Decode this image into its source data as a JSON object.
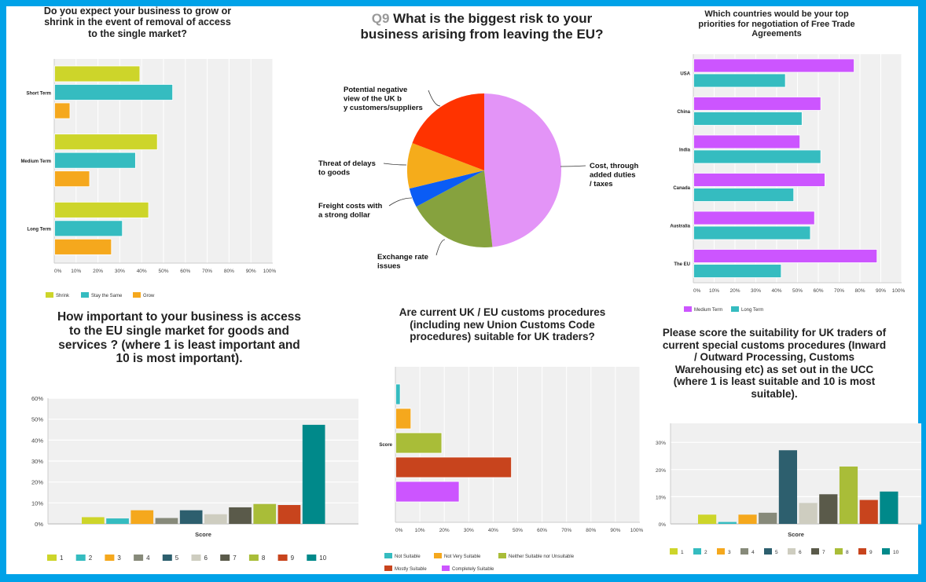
{
  "frame_color": "#00a2e8",
  "chart_data": [
    {
      "id": "growth",
      "type": "bar",
      "orientation": "horizontal",
      "title": "Do you expect your business to grow or shrink in the event of removal of access to the single market?",
      "categories": [
        "Short Term",
        "Medium Term",
        "Long Term"
      ],
      "series": [
        {
          "name": "Shrink",
          "color": "#cdd52a",
          "values": [
            39,
            47,
            43
          ]
        },
        {
          "name": "Stay the Same",
          "color": "#35bcc0",
          "values": [
            54,
            37,
            31
          ]
        },
        {
          "name": "Grow",
          "color": "#f5a81d",
          "values": [
            7,
            16,
            26
          ]
        }
      ],
      "xlim": [
        0,
        100
      ],
      "ticks": [
        "0%",
        "10%",
        "20%",
        "30%",
        "40%",
        "50%",
        "60%",
        "70%",
        "80%",
        "90%",
        "100%"
      ],
      "grid": true,
      "legend": "bottom"
    },
    {
      "id": "risk",
      "type": "pie",
      "title_prefix": "Q9",
      "title": "What is the biggest risk to your business arising from leaving the EU?",
      "slices": [
        {
          "label": "Cost, through added duties / taxes",
          "value": 48.3,
          "color": "#e394f7"
        },
        {
          "label": "Exchange rate issues",
          "value": 18.9,
          "color": "#86a23e"
        },
        {
          "label": "Freight costs with a strong dollar",
          "value": 4.0,
          "color": "#0a5cf5"
        },
        {
          "label": "Threat of delays to goods",
          "value": 9.6,
          "color": "#f5ac1b"
        },
        {
          "label": "Potential negative view of the UK by customers/suppliers",
          "value": 19.2,
          "color": "#ff3300"
        }
      ]
    },
    {
      "id": "fta",
      "type": "bar",
      "orientation": "horizontal",
      "title": "Which countries would be your top priorities for negotiation of Free Trade Agreements",
      "categories": [
        "USA",
        "China",
        "India",
        "Canada",
        "Australia",
        "The EU"
      ],
      "series": [
        {
          "name": "Medium Term",
          "color": "#cc55ff",
          "values": [
            77,
            61,
            51,
            63,
            58,
            88
          ]
        },
        {
          "name": "Long Term",
          "color": "#35bcc0",
          "values": [
            44,
            52,
            61,
            48,
            56,
            42
          ]
        }
      ],
      "xlim": [
        0,
        100
      ],
      "ticks": [
        "0%",
        "10%",
        "20%",
        "30%",
        "40%",
        "50%",
        "60%",
        "70%",
        "80%",
        "90%",
        "100%"
      ],
      "grid": true,
      "legend": "bottom"
    },
    {
      "id": "importance",
      "type": "bar",
      "orientation": "vertical",
      "title": "How important to your business is access to the EU single market for goods and services ? (where 1 is least important and 10 is most important).",
      "xlabel": "Score",
      "categories": [
        "1",
        "2",
        "3",
        "4",
        "5",
        "6",
        "7",
        "8",
        "9",
        "10"
      ],
      "values": [
        3.2,
        2.6,
        6.5,
        2.8,
        6.5,
        4.6,
        7.9,
        9.5,
        9.0,
        47.3
      ],
      "colors": [
        "#cdd52a",
        "#35bcc0",
        "#f5a81d",
        "#878a7a",
        "#2d5f6e",
        "#cecdc0",
        "#5a5a4a",
        "#a9bd38",
        "#c8441d",
        "#00898a"
      ],
      "ylim": [
        0,
        60
      ],
      "ticks": [
        "0%",
        "10%",
        "20%",
        "30%",
        "40%",
        "50%",
        "60%"
      ],
      "grid": true,
      "legend": "bottom"
    },
    {
      "id": "customs",
      "type": "bar",
      "orientation": "horizontal",
      "title": "Are current UK / EU customs procedures (including new Union Customs Code procedures) suitable for UK traders?",
      "categories": [
        "Score"
      ],
      "series": [
        {
          "name": "Not Suitable",
          "color": "#35bcc0",
          "values": [
            1.8
          ]
        },
        {
          "name": "Not Very Suitable",
          "color": "#f5a81d",
          "values": [
            6.2
          ]
        },
        {
          "name": "Neither Suitable nor Unsuitable",
          "color": "#a9bd38",
          "values": [
            18.8
          ]
        },
        {
          "name": "Mostly Suitable",
          "color": "#c8441d",
          "values": [
            47.3
          ]
        },
        {
          "name": "Completely Suitable",
          "color": "#cc55ff",
          "values": [
            25.9
          ]
        }
      ],
      "xlim": [
        0,
        100
      ],
      "ticks": [
        "0%",
        "10%",
        "20%",
        "30%",
        "40%",
        "50%",
        "60%",
        "70%",
        "80%",
        "90%",
        "100%"
      ],
      "grid": true,
      "legend": "bottom"
    },
    {
      "id": "suitability",
      "type": "bar",
      "orientation": "vertical",
      "title": "Please score the suitability for UK traders of current special customs procedures (Inward / Outward Processing, Customs Warehousing etc) as set out in the UCC (where 1 is least suitable and 10 is most suitable).",
      "xlabel": "Score",
      "categories": [
        "1",
        "2",
        "3",
        "4",
        "5",
        "6",
        "7",
        "8",
        "9",
        "10"
      ],
      "values": [
        3.4,
        0.7,
        3.4,
        4.1,
        27.1,
        7.7,
        10.9,
        21.1,
        8.8,
        11.9
      ],
      "colors": [
        "#cdd52a",
        "#35bcc0",
        "#f5a81d",
        "#878a7a",
        "#2d5f6e",
        "#cecdc0",
        "#5a5a4a",
        "#a9bd38",
        "#c8441d",
        "#00898a"
      ],
      "ylim": [
        0,
        37
      ],
      "ticks": [
        "0%",
        "10%",
        "20%",
        "30%"
      ],
      "grid": true,
      "legend": "bottom"
    }
  ]
}
